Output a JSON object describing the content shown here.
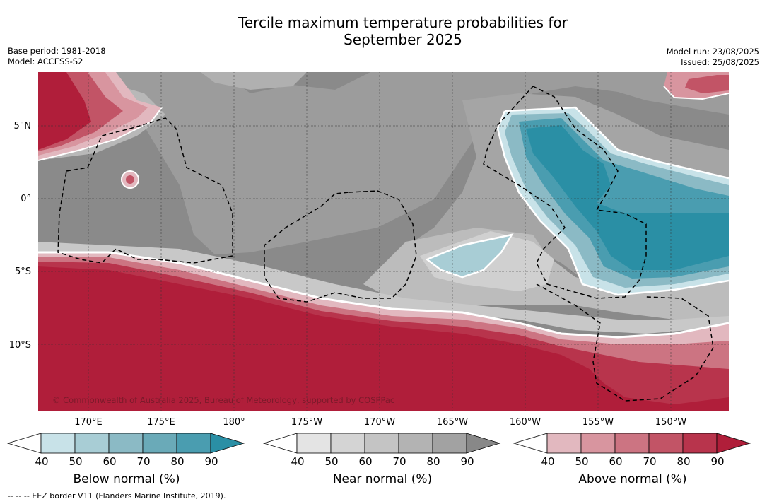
{
  "title": {
    "line1": "Tercile maximum temperature probabilities for",
    "line2": "September 2025"
  },
  "meta_left": {
    "base_period": "Base period: 1981-2018",
    "model": "Model: ACCESS-S2"
  },
  "meta_right": {
    "model_run": "Model run: 23/08/2025",
    "issued": "Issued: 25/08/2025"
  },
  "map": {
    "lat_labels": [
      "5°N",
      "0°",
      "5°S",
      "10°S"
    ],
    "lon_labels": [
      "170°E",
      "175°E",
      "180°",
      "175°W",
      "170°W",
      "165°W",
      "160°W",
      "155°W",
      "150°W"
    ],
    "copyright": "© Commonwealth of Australia 2025, Bureau of Meteorology, supported by COSPPac",
    "colors": {
      "near_normal_base": "#888888",
      "above_normal": "#b01e3a",
      "below_normal": "#2a8fa5"
    }
  },
  "colorbars": [
    {
      "title": "Below normal (%)",
      "ticks": [
        "40",
        "50",
        "60",
        "70",
        "80",
        "90"
      ],
      "colors": [
        "#ffffff",
        "#c8e2e8",
        "#a8cdd5",
        "#8bbac5",
        "#6aaab8",
        "#4a9db0",
        "#2a8fa5"
      ]
    },
    {
      "title": "Near normal (%)",
      "ticks": [
        "40",
        "50",
        "60",
        "70",
        "80",
        "90"
      ],
      "colors": [
        "#ffffff",
        "#e4e4e4",
        "#d4d4d4",
        "#c4c4c4",
        "#b3b3b3",
        "#a2a2a2",
        "#888888"
      ]
    },
    {
      "title": "Above normal (%)",
      "ticks": [
        "40",
        "50",
        "60",
        "70",
        "80",
        "90"
      ],
      "colors": [
        "#ffffff",
        "#e2b8bf",
        "#d8959f",
        "#cc7482",
        "#c25466",
        "#b8344c",
        "#b01e3a"
      ]
    }
  ],
  "footer": "-- -- -- EEZ border V11 (Flanders Marine Institute, 2019)."
}
